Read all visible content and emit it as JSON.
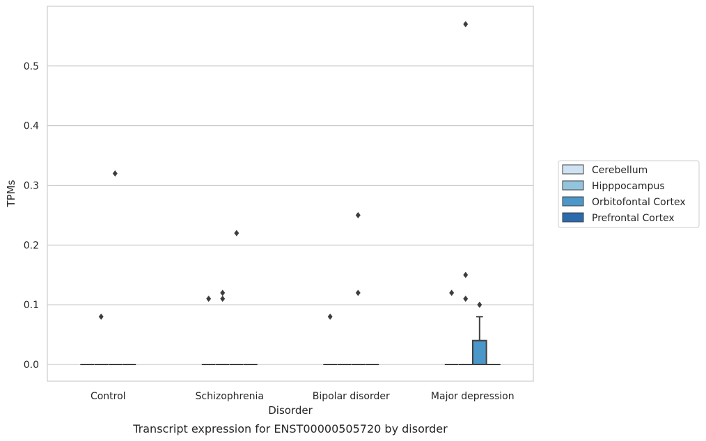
{
  "chart_data": {
    "type": "box",
    "caption": "Transcript expression for ENST00000505720 by disorder",
    "xlabel": "Disorder",
    "ylabel": "TPMs",
    "categories": [
      "Control",
      "Schizophrenia",
      "Bipolar disorder",
      "Major depression"
    ],
    "ylim": [
      -0.028,
      0.6
    ],
    "yticks": [
      0.0,
      0.1,
      0.2,
      0.3,
      0.4,
      0.5
    ],
    "ytick_labels": [
      "0.0",
      "0.1",
      "0.2",
      "0.3",
      "0.4",
      "0.5"
    ],
    "grid": true,
    "legend_position": "right",
    "series": [
      {
        "name": "Cerebellum",
        "color": "#cfe1f2",
        "boxes": [
          {
            "category": "Control",
            "q1": 0,
            "median": 0,
            "q3": 0,
            "whisker_low": 0,
            "whisker_high": 0,
            "outliers": []
          },
          {
            "category": "Schizophrenia",
            "q1": 0,
            "median": 0,
            "q3": 0,
            "whisker_low": 0,
            "whisker_high": 0,
            "outliers": [
              0.11
            ]
          },
          {
            "category": "Bipolar disorder",
            "q1": 0,
            "median": 0,
            "q3": 0,
            "whisker_low": 0,
            "whisker_high": 0,
            "outliers": [
              0.08
            ]
          },
          {
            "category": "Major depression",
            "q1": 0,
            "median": 0,
            "q3": 0,
            "whisker_low": 0,
            "whisker_high": 0,
            "outliers": [
              0.12
            ]
          }
        ]
      },
      {
        "name": "Hipppocampus",
        "color": "#93c4de",
        "boxes": [
          {
            "category": "Control",
            "q1": 0,
            "median": 0,
            "q3": 0,
            "whisker_low": 0,
            "whisker_high": 0,
            "outliers": [
              0.08
            ]
          },
          {
            "category": "Schizophrenia",
            "q1": 0,
            "median": 0,
            "q3": 0,
            "whisker_low": 0,
            "whisker_high": 0,
            "outliers": [
              0.12,
              0.11
            ]
          },
          {
            "category": "Bipolar disorder",
            "q1": 0,
            "median": 0,
            "q3": 0,
            "whisker_low": 0,
            "whisker_high": 0,
            "outliers": []
          },
          {
            "category": "Major depression",
            "q1": 0,
            "median": 0,
            "q3": 0,
            "whisker_low": 0,
            "whisker_high": 0,
            "outliers": [
              0.57,
              0.15,
              0.11
            ]
          }
        ]
      },
      {
        "name": "Orbitofontal Cortex",
        "color": "#4b97c9",
        "boxes": [
          {
            "category": "Control",
            "q1": 0,
            "median": 0,
            "q3": 0,
            "whisker_low": 0,
            "whisker_high": 0,
            "outliers": [
              0.32
            ]
          },
          {
            "category": "Schizophrenia",
            "q1": 0,
            "median": 0,
            "q3": 0,
            "whisker_low": 0,
            "whisker_high": 0,
            "outliers": [
              0.22
            ]
          },
          {
            "category": "Bipolar disorder",
            "q1": 0,
            "median": 0,
            "q3": 0,
            "whisker_low": 0,
            "whisker_high": 0,
            "outliers": [
              0.25,
              0.12
            ]
          },
          {
            "category": "Major depression",
            "q1": 0,
            "median": 0,
            "q3": 0.04,
            "whisker_low": 0,
            "whisker_high": 0.08,
            "outliers": [
              0.1
            ]
          }
        ]
      },
      {
        "name": "Prefrontal Cortex",
        "color": "#2a6aad",
        "boxes": [
          {
            "category": "Control",
            "q1": 0,
            "median": 0,
            "q3": 0,
            "whisker_low": 0,
            "whisker_high": 0,
            "outliers": []
          },
          {
            "category": "Schizophrenia",
            "q1": 0,
            "median": 0,
            "q3": 0,
            "whisker_low": 0,
            "whisker_high": 0,
            "outliers": []
          },
          {
            "category": "Bipolar disorder",
            "q1": 0,
            "median": 0,
            "q3": 0,
            "whisker_low": 0,
            "whisker_high": 0,
            "outliers": []
          },
          {
            "category": "Major depression",
            "q1": 0,
            "median": 0,
            "q3": 0,
            "whisker_low": 0,
            "whisker_high": 0,
            "outliers": []
          }
        ]
      }
    ]
  }
}
